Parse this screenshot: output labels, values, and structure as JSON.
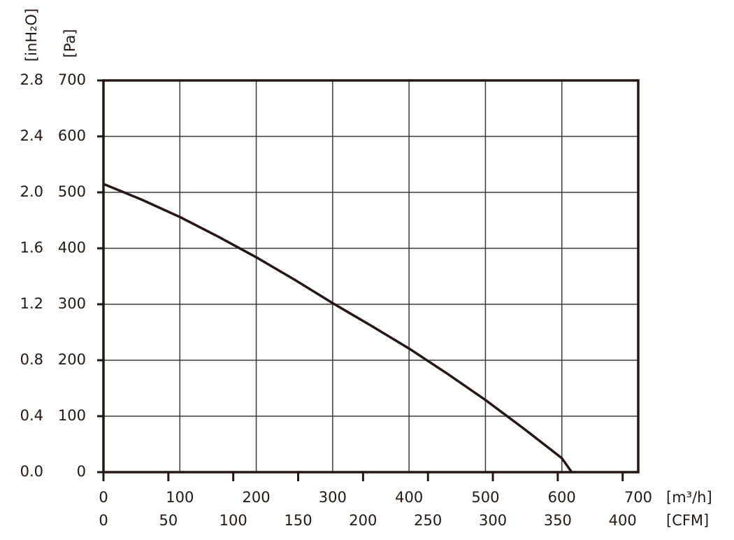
{
  "chart_data": {
    "type": "line",
    "x": [
      0,
      50,
      100,
      150,
      200,
      250,
      300,
      350,
      400,
      450,
      500,
      550,
      600,
      613
    ],
    "values": [
      515,
      487,
      456,
      421,
      384,
      344,
      302,
      262,
      221,
      176,
      129,
      78,
      25,
      0
    ],
    "color": "#231815",
    "xlim": [
      0,
      700
    ],
    "xticks": [
      0,
      100,
      200,
      300,
      400,
      500,
      600,
      700
    ],
    "x_label": "[m³/h]",
    "x2lim": [
      0,
      412
    ],
    "x2ticks": [
      0,
      50,
      100,
      150,
      200,
      250,
      300,
      350,
      400
    ],
    "x2_label": "[CFM]",
    "ylim": [
      0,
      700
    ],
    "yticks": [
      0,
      100,
      200,
      300,
      400,
      500,
      600,
      700
    ],
    "y_label": "[Pa]",
    "y2lim": [
      0,
      2.8
    ],
    "y2ticks": [
      {
        "value": 0,
        "label": "0.0"
      },
      0.4,
      0.8,
      1.2,
      1.6,
      {
        "value": 2,
        "label": "2.0"
      },
      2.4,
      2.8
    ],
    "y2_label": "[inH₂O]",
    "grid": true
  }
}
